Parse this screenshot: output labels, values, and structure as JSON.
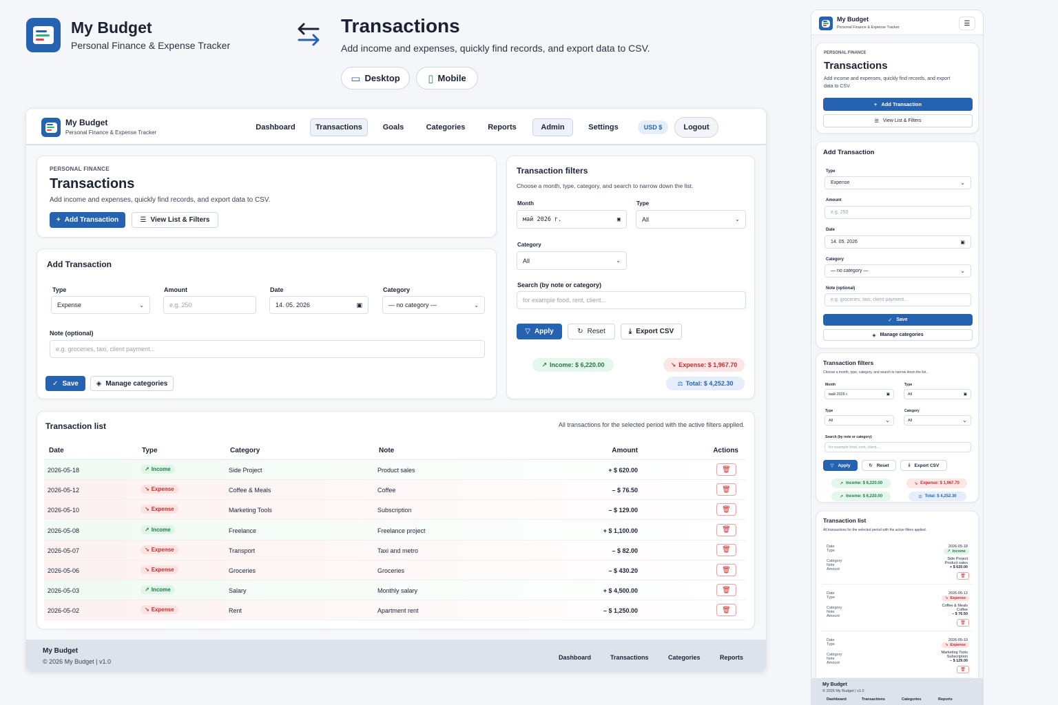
{
  "hero": {
    "app_name": "My Budget",
    "app_subtitle": "Personal Finance & Expense Tracker",
    "page_title": "Transactions",
    "page_description": "Add income and expenses, quickly find records, and export data to CSV.",
    "desktop_label": "Desktop",
    "mobile_label": "Mobile"
  },
  "navbar": {
    "app_name": "My Budget",
    "app_subtitle": "Personal Finance & Expense Tracker",
    "items": [
      "Dashboard",
      "Transactions",
      "Goals",
      "Categories",
      "Reports",
      "Admin",
      "Settings"
    ],
    "currency": "USD $",
    "logout": "Logout"
  },
  "header_card": {
    "eyebrow": "PERSONAL FINANCE",
    "title": "Transactions",
    "description": "Add income and expenses, quickly find records, and export data to CSV.",
    "add_button": "Add Transaction",
    "view_button": "View List & Filters"
  },
  "add_form": {
    "title": "Add Transaction",
    "type_label": "Type",
    "type_value": "Expense",
    "amount_label": "Amount",
    "amount_placeholder": "e.g. 250",
    "date_label": "Date",
    "date_value": "14. 05. 2026",
    "category_label": "Category",
    "category_value": "— no category —",
    "note_label": "Note (optional)",
    "note_placeholder": "e.g. groceries, taxi, client payment...",
    "save": "Save",
    "manage": "Manage categories"
  },
  "filters": {
    "title": "Transaction filters",
    "description": "Choose a month, type, category, and search to narrow down the list.",
    "month_label": "Month",
    "month_value": "май 2026 г.",
    "type_label": "Type",
    "type_value": "All",
    "category_label": "Category",
    "category_value": "All",
    "search_label": "Search (by note or category)",
    "search_placeholder": "for example food, rent, client...",
    "apply": "Apply",
    "reset": "Reset",
    "export": "Export CSV",
    "income": "Income: $ 6,220.00",
    "expense": "Expense: $ 1,967.70",
    "total": "Total: $ 4,252.30"
  },
  "list": {
    "title": "Transaction list",
    "subtitle": "All transactions for the selected period with the active filters applied.",
    "columns": [
      "Date",
      "Type",
      "Category",
      "Note",
      "Amount",
      "Actions"
    ],
    "rows": [
      {
        "date": "2026-05-18",
        "type": "Income",
        "category": "Side Project",
        "note": "Product sales",
        "amount": "+ $ 620.00"
      },
      {
        "date": "2026-05-12",
        "type": "Expense",
        "category": "Coffee & Meals",
        "note": "Coffee",
        "amount": "– $ 76.50"
      },
      {
        "date": "2026-05-10",
        "type": "Expense",
        "category": "Marketing Tools",
        "note": "Subscription",
        "amount": "– $ 129.00"
      },
      {
        "date": "2026-05-08",
        "type": "Income",
        "category": "Freelance",
        "note": "Freelance project",
        "amount": "+ $ 1,100.00"
      },
      {
        "date": "2026-05-07",
        "type": "Expense",
        "category": "Transport",
        "note": "Taxi and metro",
        "amount": "– $ 82.00"
      },
      {
        "date": "2026-05-06",
        "type": "Expense",
        "category": "Groceries",
        "note": "Groceries",
        "amount": "– $ 430.20"
      },
      {
        "date": "2026-05-03",
        "type": "Income",
        "category": "Salary",
        "note": "Monthly salary",
        "amount": "+ $ 4,500.00"
      },
      {
        "date": "2026-05-02",
        "type": "Expense",
        "category": "Rent",
        "note": "Apartment rent",
        "amount": "– $ 1,250.00"
      }
    ]
  },
  "footer": {
    "app_name": "My Budget",
    "copyright": "© 2026 My Budget | v1.0",
    "links": [
      "Dashboard",
      "Transactions",
      "Categories",
      "Reports"
    ]
  },
  "mobile": {
    "app_name": "My Budget",
    "app_subtitle": "Personal Finance & Expense Tracker",
    "eyebrow": "PERSONAL FINANCE",
    "title": "Transactions",
    "description": "Add income and expenses, quickly find records, and export data to CSV.",
    "add_button": "Add Transaction",
    "view_button": "View List & Filters",
    "form_title": "Add Transaction",
    "type_label": "Type",
    "type_value": "Expense",
    "amount_label": "Amount",
    "amount_placeholder": "e.g. 250",
    "date_label": "Date",
    "date_value": "14. 05. 2026",
    "category_label": "Category",
    "category_value": "— no category —",
    "note_label": "Note (optional)",
    "note_placeholder": "e.g. groceries, taxi, client payment...",
    "save": "Save",
    "manage": "Manage categories",
    "filters_title": "Transaction filters",
    "filters_desc": "Choose a month, type, category, and search to narrow down the list.",
    "month_label": "Month",
    "month_value": "май 2026 г.",
    "f_type_label": "Type",
    "f_type_value": "All",
    "f_type2_label": "Type",
    "f_type2_value": "All",
    "f_category_label": "Category",
    "f_category_value": "All",
    "search_label": "Search (by note or category)",
    "search_placeholder": "for example food, rent, client...",
    "apply": "Apply",
    "reset": "Reset",
    "export": "Export CSV",
    "income": "Income: $ 6,220.00",
    "expense": "Expense: $ 1,967.70",
    "income2": "Income: $ 6,220.00",
    "total": "Total: $ 4,252.30",
    "list_title": "Transaction list",
    "list_subtitle": "All transactions for the selected period with the active filters applied.",
    "rows": [
      {
        "date": "2026-05-18",
        "type": "Income",
        "category": "Side Project",
        "note": "Product sales",
        "amount": "+ $ 620.00"
      },
      {
        "date": "2026-05-12",
        "type": "Expense",
        "category": "Coffee & Meals",
        "note": "Coffee",
        "amount": "– $ 76.50"
      },
      {
        "date": "2026-05-10",
        "type": "Expense",
        "category": "Marketing Tools",
        "note": "Subscription",
        "amount": "– $ 129.00"
      }
    ],
    "row_keys": [
      "Date",
      "Type",
      "Category",
      "Note",
      "Amount"
    ],
    "footer_name": "My Budget",
    "footer_copy": "© 2026 My Budget | v1.0",
    "footer_links": [
      "Dashboard",
      "Transactions",
      "Categories",
      "Reports"
    ]
  },
  "colors": {
    "primary": "#2563b0",
    "income": "#1f7a45",
    "expense": "#c22d2d"
  }
}
